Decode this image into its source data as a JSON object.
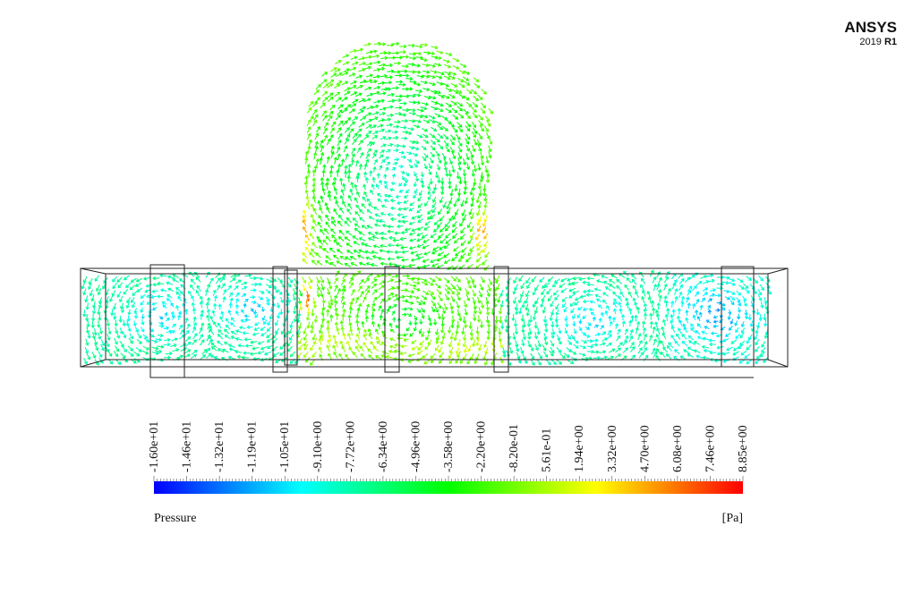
{
  "brand": {
    "name": "ANSYS",
    "version": "2019",
    "release": "R1"
  },
  "legend": {
    "tick_labels": [
      "-1.60e+01",
      "-1.46e+01",
      "-1.32e+01",
      "-1.19e+01",
      "-1.05e+01",
      "-9.10e+00",
      "-7.72e+00",
      "-6.34e+00",
      "-4.96e+00",
      "-3.58e+00",
      "-2.20e+00",
      "-8.20e-01",
      "5.61e-01",
      "1.94e+00",
      "3.32e+00",
      "4.70e+00",
      "6.08e+00",
      "7.46e+00",
      "8.85e+00"
    ],
    "quantity": "Pressure",
    "unit": "[Pa]"
  }
}
